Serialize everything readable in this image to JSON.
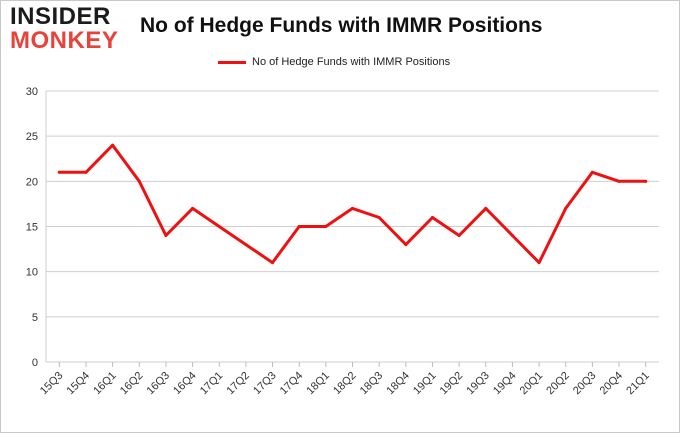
{
  "logo": {
    "line1": "INSIDER",
    "line2": "MONKEY"
  },
  "chart_data": {
    "type": "line",
    "title": "No of Hedge Funds with IMMR Positions",
    "xlabel": "",
    "ylabel": "",
    "categories": [
      "15Q3",
      "15Q4",
      "16Q1",
      "16Q2",
      "16Q3",
      "16Q4",
      "17Q1",
      "17Q2",
      "17Q3",
      "17Q4",
      "18Q1",
      "18Q2",
      "18Q3",
      "18Q4",
      "19Q1",
      "19Q2",
      "19Q3",
      "19Q4",
      "20Q1",
      "20Q2",
      "20Q3",
      "20Q4",
      "21Q1"
    ],
    "series": [
      {
        "name": "No of Hedge Funds with IMMR Positions",
        "values": [
          21,
          21,
          24,
          20,
          14,
          17,
          15,
          13,
          11,
          15,
          15,
          17,
          16,
          13,
          16,
          14,
          17,
          14,
          11,
          17,
          21,
          20,
          20
        ],
        "color": "#ee1111"
      }
    ],
    "yticks": [
      "0",
      "5",
      "10",
      "15",
      "20",
      "25",
      "30"
    ],
    "ylim": [
      0,
      30
    ],
    "grid": true,
    "legend_position": "top-center",
    "x_tick_rotation": "-45deg"
  }
}
